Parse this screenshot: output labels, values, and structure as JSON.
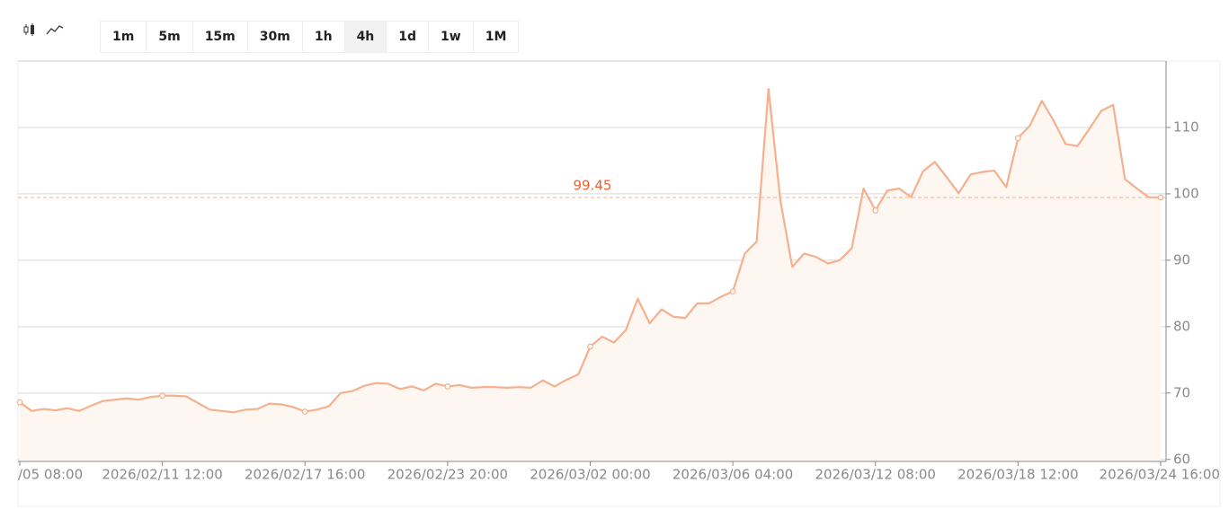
{
  "toolbar": {
    "intervals": [
      "1m",
      "5m",
      "15m",
      "30m",
      "1h",
      "4h",
      "1d",
      "1w",
      "1M"
    ],
    "selected": "4h"
  },
  "chart_data": {
    "type": "line",
    "categories": [
      "/05 08:00",
      null,
      null,
      null,
      null,
      null,
      null,
      null,
      null,
      null,
      null,
      null,
      "2026/02/11 12:00",
      null,
      null,
      null,
      null,
      null,
      null,
      null,
      null,
      null,
      null,
      null,
      "2026/02/17 16:00",
      null,
      null,
      null,
      null,
      null,
      null,
      null,
      null,
      null,
      null,
      null,
      "2026/02/23 20:00",
      null,
      null,
      null,
      null,
      null,
      null,
      null,
      null,
      null,
      null,
      null,
      "2026/03/02 00:00",
      null,
      null,
      null,
      null,
      null,
      null,
      null,
      null,
      null,
      null,
      null,
      "2026/03/06 04:00",
      null,
      null,
      null,
      null,
      null,
      null,
      null,
      null,
      null,
      null,
      null,
      "2026/03/12 08:00",
      null,
      null,
      null,
      null,
      null,
      null,
      null,
      null,
      null,
      null,
      null,
      "2026/03/18 12:00",
      null,
      null,
      null,
      null,
      null,
      null,
      null,
      null,
      null,
      null,
      null,
      "2026/03/24 16:00"
    ],
    "values": [
      68.6,
      67.3,
      67.6,
      67.4,
      67.7,
      67.3,
      68.1,
      68.8,
      69.0,
      69.2,
      69.0,
      69.4,
      69.6,
      69.6,
      69.5,
      68.5,
      67.5,
      67.3,
      67.1,
      67.5,
      67.6,
      68.4,
      68.3,
      67.9,
      67.2,
      67.5,
      68.0,
      70.0,
      70.3,
      71.1,
      71.5,
      71.4,
      70.6,
      71.0,
      70.4,
      71.4,
      71.0,
      71.2,
      70.8,
      70.9,
      70.9,
      70.8,
      70.9,
      70.8,
      71.9,
      71.0,
      72.0,
      72.8,
      77.0,
      78.5,
      77.6,
      79.5,
      84.2,
      80.5,
      82.6,
      81.5,
      81.3,
      83.5,
      83.5,
      84.5,
      85.3,
      91.0,
      92.8,
      115.8,
      99.0,
      89.0,
      91.0,
      90.5,
      89.5,
      90.0,
      91.8,
      100.8,
      97.5,
      100.5,
      100.8,
      99.5,
      103.4,
      104.8,
      102.5,
      100.1,
      102.9,
      103.3,
      103.5,
      101.0,
      108.4,
      110.3,
      114.0,
      111.0,
      107.5,
      107.2,
      109.8,
      112.5,
      113.4,
      102.2,
      100.8,
      99.5,
      99.45
    ],
    "color": "#f5b08d",
    "area_color": "#fdf6f1",
    "ylim": [
      59.7,
      120
    ],
    "yticks": [
      60,
      70,
      80,
      90,
      100,
      110
    ],
    "grid": true,
    "price_line": 99.45,
    "price_line_color": "#e8632b"
  }
}
